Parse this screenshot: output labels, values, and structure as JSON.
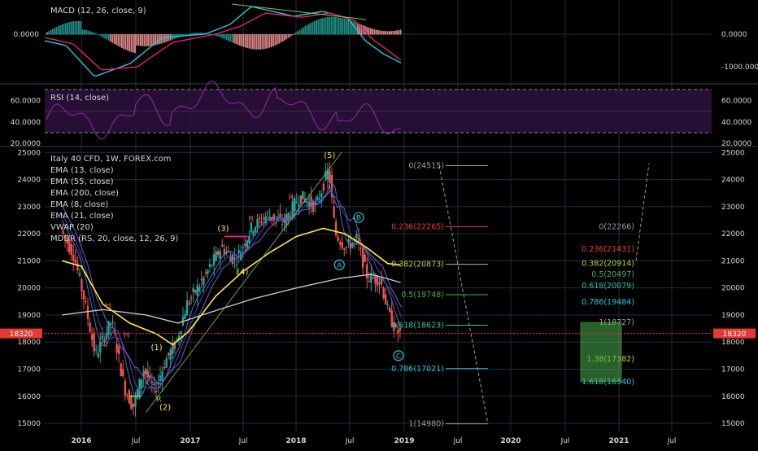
{
  "chart_data": {
    "type": "candlestick",
    "main": {
      "title": "Italy 40 CFD, 1W, FOREX.com",
      "indicators": [
        "EMA (13, close)",
        "EMA (55, close)",
        "EMA (200, close)",
        "EMA (8, close)",
        "EMA (21, close)",
        "VWAP (20)",
        "MDDR (RS, 20, close, 12, 26, 9)"
      ],
      "y_ticks": [
        "25000",
        "24000",
        "23000",
        "22000",
        "21000",
        "20000",
        "19000",
        "18000",
        "17000",
        "16000",
        "15000"
      ],
      "ylim": [
        14700,
        25100
      ],
      "last_price": "18320",
      "last_price_value": 18320,
      "x_ticks": [
        "2016",
        "Jul",
        "2017",
        "Jul",
        "2018",
        "Jul",
        "2019",
        "Jul",
        "2020",
        "Jul",
        "2021",
        "Jul"
      ],
      "wave_labels": [
        "(1)",
        "(2)",
        "(3)",
        "(4)",
        "(5)",
        "H",
        "H",
        "R",
        "R",
        "R",
        "A",
        "B",
        "C"
      ],
      "fib_left": [
        {
          "label": "0(24515)",
          "value": 24515,
          "color": "#9e9e9e"
        },
        {
          "label": "0.236(22265)",
          "value": 22265,
          "color": "#f23645"
        },
        {
          "label": "0.382(20873)",
          "value": 20873,
          "color": "#b5d334"
        },
        {
          "label": "0.5(19748)",
          "value": 19748,
          "color": "#4caf50"
        },
        {
          "label": "0.618(18623)",
          "value": 18623,
          "color": "#26c6a0"
        },
        {
          "label": "0.786(17021)",
          "value": 17021,
          "color": "#26c6da"
        },
        {
          "label": "1(14980)",
          "value": 14980,
          "color": "#9e9e9e"
        }
      ],
      "fib_right": [
        {
          "label": "0(22266)",
          "value": 22266,
          "color": "#9e9e9e"
        },
        {
          "label": "0.236(21431)",
          "value": 21431,
          "color": "#f23645"
        },
        {
          "label": "0.382(20914)",
          "value": 20914,
          "color": "#b5d334"
        },
        {
          "label": "0.5(20497)",
          "value": 20497,
          "color": "#4caf50"
        },
        {
          "label": "0.618(20079)",
          "value": 20079,
          "color": "#26c6a0"
        },
        {
          "label": "0.786(19484)",
          "value": 19484,
          "color": "#26c6da"
        },
        {
          "label": "1(18727)",
          "value": 18727,
          "color": "#9e9e9e"
        },
        {
          "label": "1.38(17382)",
          "value": 17382,
          "color": "#b5d334"
        },
        {
          "label": "1.618(16540)",
          "value": 16540,
          "color": "#26c6da"
        }
      ]
    },
    "macd": {
      "title": "MACD (12, 26, close, 9)",
      "y_ticks": [
        "0.0000",
        "-1000.0000"
      ]
    },
    "rsi": {
      "title": "RSI (14, close)",
      "y_ticks": [
        "60.0000",
        "40.0000",
        "20.0000"
      ]
    }
  },
  "colors": {
    "background": "#000000",
    "grid": "#252a3c",
    "up": "#26a69a",
    "down": "#ef5350",
    "ema_yellow": "#ffeb3b",
    "ema_200": "#d0d0d0",
    "rsi": "#9c27b0",
    "price_line": "#ff2a2a"
  }
}
